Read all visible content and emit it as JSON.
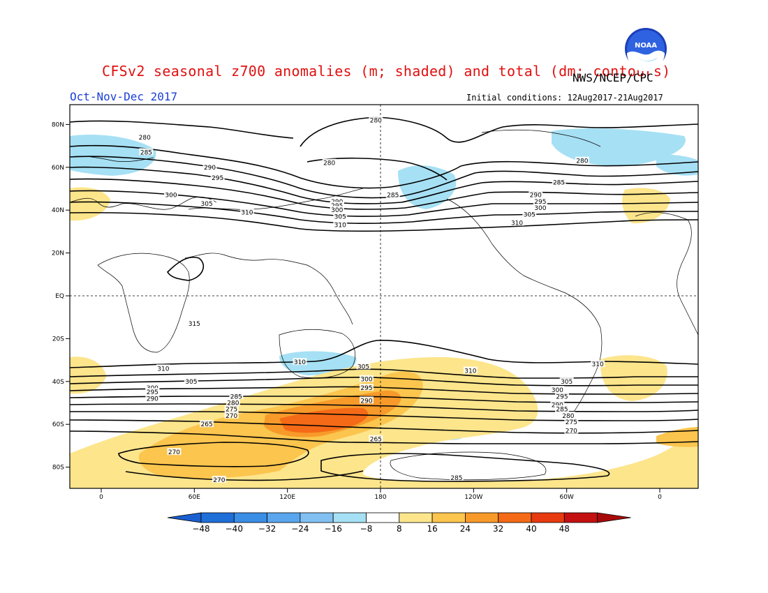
{
  "header": {
    "title": "CFSv2 seasonal z700 anomalies (m; shaded) and total (dm; contours)",
    "agency": "NWS/NCEP/CPC",
    "season": "Oct-Nov-Dec 2017",
    "initial_conditions": "Initial conditions: 12Aug2017-21Aug2017",
    "logo_text": "NOAA"
  },
  "map": {
    "lon_ticks": [
      {
        "lon": 0,
        "label": "0"
      },
      {
        "lon": 60,
        "label": "60E"
      },
      {
        "lon": 120,
        "label": "120E"
      },
      {
        "lon": 180,
        "label": "180"
      },
      {
        "lon": 240,
        "label": "120W"
      },
      {
        "lon": 300,
        "label": "60W"
      },
      {
        "lon": 360,
        "label": "0"
      }
    ],
    "lat_ticks": [
      {
        "lat": 80,
        "label": "80N"
      },
      {
        "lat": 60,
        "label": "60N"
      },
      {
        "lat": 40,
        "label": "40N"
      },
      {
        "lat": 20,
        "label": "20N"
      },
      {
        "lat": 0,
        "label": "EQ"
      },
      {
        "lat": -20,
        "label": "20S"
      },
      {
        "lat": -40,
        "label": "40S"
      },
      {
        "lat": -60,
        "label": "60S"
      },
      {
        "lat": -80,
        "label": "80S"
      }
    ],
    "contour_labels": [
      {
        "text": "280",
        "lon": 28,
        "lat": 74
      },
      {
        "text": "280",
        "lon": 177,
        "lat": 82
      },
      {
        "text": "280",
        "lon": 147,
        "lat": 62
      },
      {
        "text": "280",
        "lon": 310,
        "lat": 63
      },
      {
        "text": "285",
        "lon": 29,
        "lat": 67
      },
      {
        "text": "285",
        "lon": 188,
        "lat": 47
      },
      {
        "text": "285",
        "lon": 295,
        "lat": 53
      },
      {
        "text": "290",
        "lon": 70,
        "lat": 60
      },
      {
        "text": "290",
        "lon": 152,
        "lat": 44
      },
      {
        "text": "290",
        "lon": 280,
        "lat": 47
      },
      {
        "text": "295",
        "lon": 75,
        "lat": 55
      },
      {
        "text": "295",
        "lon": 152,
        "lat": 42
      },
      {
        "text": "295",
        "lon": 283,
        "lat": 44
      },
      {
        "text": "300",
        "lon": 45,
        "lat": 47
      },
      {
        "text": "300",
        "lon": 152,
        "lat": 40
      },
      {
        "text": "300",
        "lon": 283,
        "lat": 41
      },
      {
        "text": "305",
        "lon": 68,
        "lat": 43
      },
      {
        "text": "305",
        "lon": 154,
        "lat": 37
      },
      {
        "text": "305",
        "lon": 276,
        "lat": 38
      },
      {
        "text": "310",
        "lon": 94,
        "lat": 39
      },
      {
        "text": "310",
        "lon": 154,
        "lat": 33
      },
      {
        "text": "310",
        "lon": 268,
        "lat": 34
      },
      {
        "text": "315",
        "lon": 60,
        "lat": -13
      },
      {
        "text": "310",
        "lon": 40,
        "lat": -34
      },
      {
        "text": "310",
        "lon": 128,
        "lat": -31
      },
      {
        "text": "310",
        "lon": 238,
        "lat": -35
      },
      {
        "text": "310",
        "lon": 320,
        "lat": -32
      },
      {
        "text": "305",
        "lon": 58,
        "lat": -40
      },
      {
        "text": "305",
        "lon": 169,
        "lat": -33
      },
      {
        "text": "305",
        "lon": 300,
        "lat": -40
      },
      {
        "text": "300",
        "lon": 33,
        "lat": -43
      },
      {
        "text": "300",
        "lon": 171,
        "lat": -39
      },
      {
        "text": "300",
        "lon": 294,
        "lat": -44
      },
      {
        "text": "295",
        "lon": 33,
        "lat": -45
      },
      {
        "text": "295",
        "lon": 171,
        "lat": -43
      },
      {
        "text": "295",
        "lon": 297,
        "lat": -47
      },
      {
        "text": "290",
        "lon": 33,
        "lat": -48
      },
      {
        "text": "290",
        "lon": 171,
        "lat": -49
      },
      {
        "text": "290",
        "lon": 294,
        "lat": -51
      },
      {
        "text": "285",
        "lon": 87,
        "lat": -47
      },
      {
        "text": "285",
        "lon": 297,
        "lat": -53
      },
      {
        "text": "280",
        "lon": 85,
        "lat": -50
      },
      {
        "text": "280",
        "lon": 301,
        "lat": -56
      },
      {
        "text": "275",
        "lon": 84,
        "lat": -53
      },
      {
        "text": "275",
        "lon": 303,
        "lat": -59
      },
      {
        "text": "270",
        "lon": 84,
        "lat": -56
      },
      {
        "text": "270",
        "lon": 303,
        "lat": -63
      },
      {
        "text": "265",
        "lon": 68,
        "lat": -60
      },
      {
        "text": "265",
        "lon": 177,
        "lat": -67
      },
      {
        "text": "270",
        "lon": 47,
        "lat": -73
      },
      {
        "text": "270",
        "lon": 76,
        "lat": -86
      },
      {
        "text": "285",
        "lon": 229,
        "lat": -85
      }
    ]
  },
  "colorbar": {
    "labels": [
      "−48",
      "−40",
      "−32",
      "−24",
      "−16",
      "−8",
      "8",
      "16",
      "24",
      "32",
      "40",
      "48"
    ],
    "colors": [
      "#1f6fd8",
      "#3a8ee6",
      "#5aa6ee",
      "#82c0f2",
      "#a6e0f4",
      "#ffffff",
      "#fde58c",
      "#fbc54e",
      "#f79a2a",
      "#f56a16",
      "#e83a10",
      "#c41010"
    ],
    "under_color": "#1a5fd0",
    "over_color": "#a80a0a"
  }
}
